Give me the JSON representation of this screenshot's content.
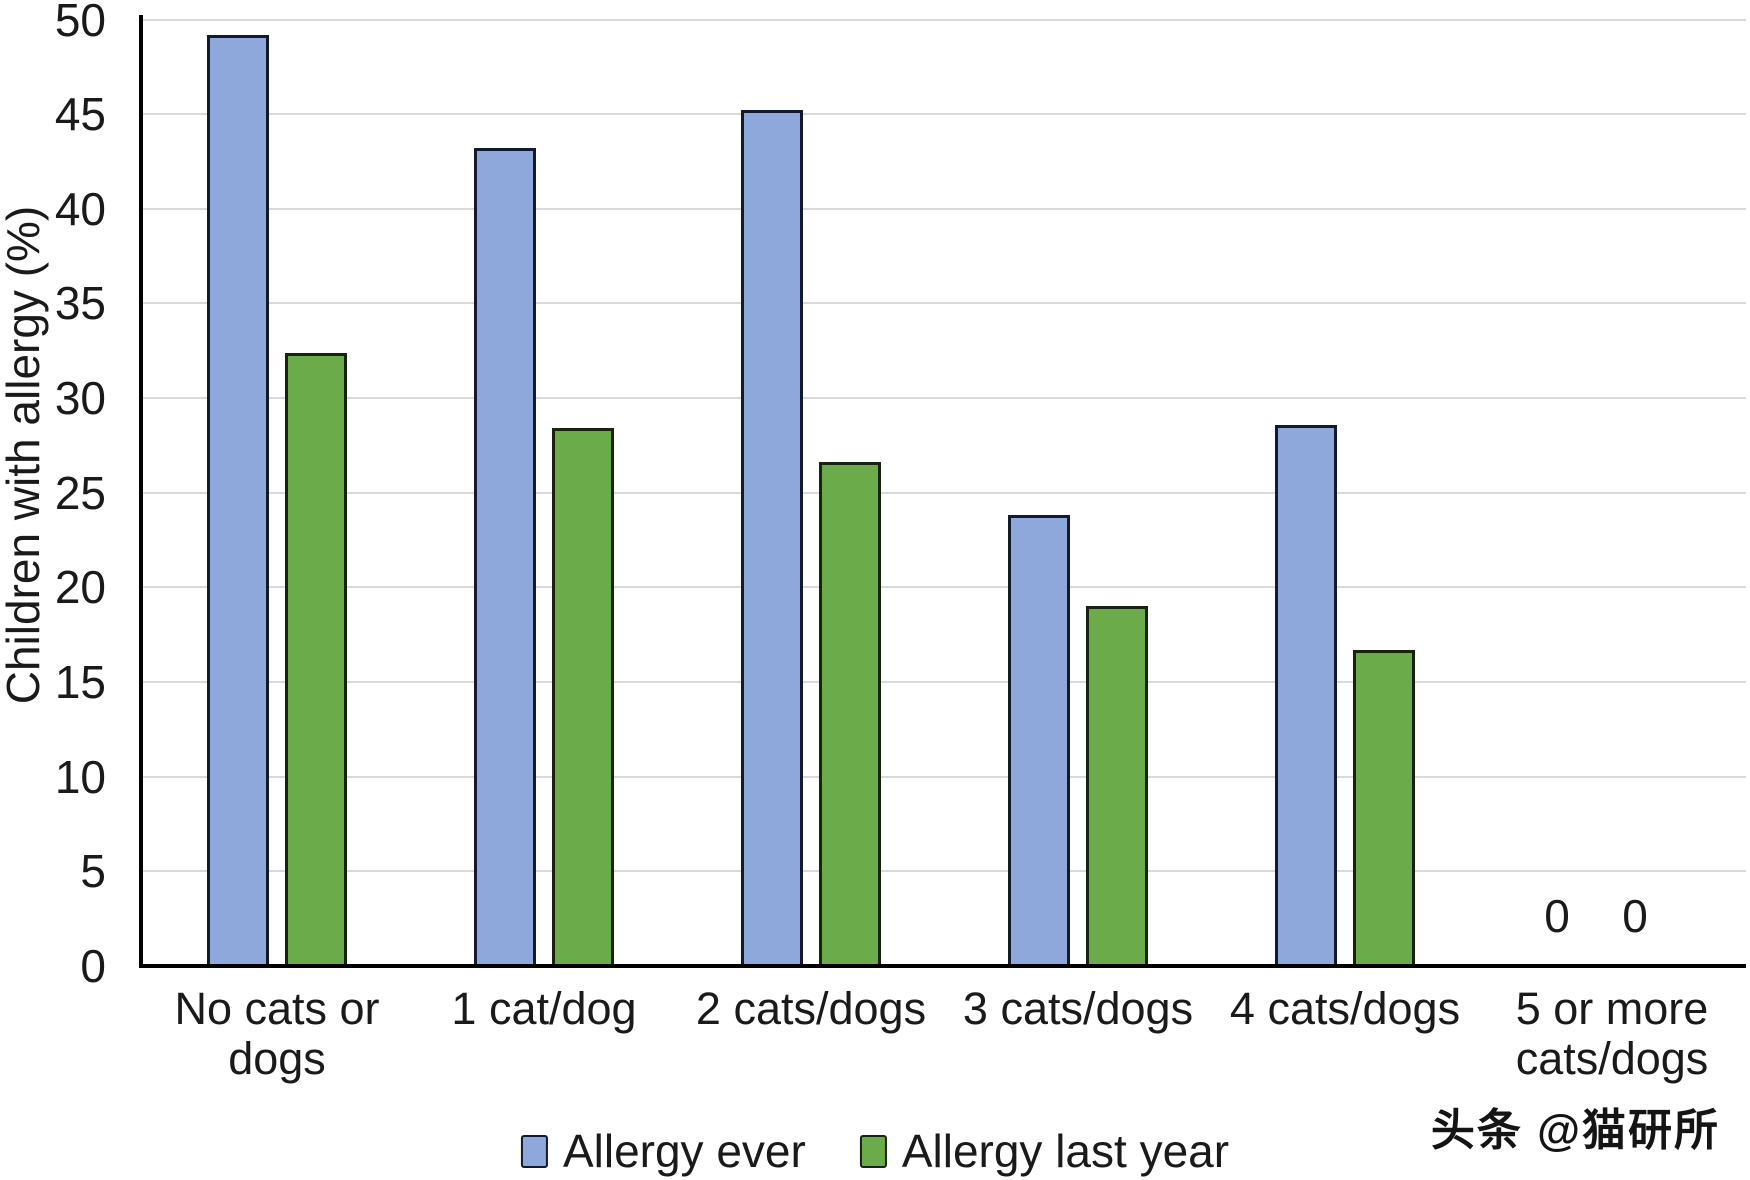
{
  "chart_data": {
    "type": "bar",
    "title": "",
    "xlabel": "",
    "ylabel": "Children with allergy (%)",
    "ylim": [
      0,
      50
    ],
    "ytick_step": 5,
    "yticks": [
      "0",
      "5",
      "10",
      "15",
      "20",
      "25",
      "30",
      "35",
      "40",
      "45",
      "50"
    ],
    "grid": true,
    "legend_position": "bottom-center",
    "categories": [
      "No cats or dogs",
      "1 cat/dog",
      "2 cats/dogs",
      "3 cats/dogs",
      "4 cats/dogs",
      "5 or more cats/dogs"
    ],
    "category_lines": [
      [
        "No cats or",
        "dogs"
      ],
      [
        "1 cat/dog"
      ],
      [
        "2 cats/dogs"
      ],
      [
        "3 cats/dogs"
      ],
      [
        "4 cats/dogs"
      ],
      [
        "5 or more",
        "cats/dogs"
      ]
    ],
    "series": [
      {
        "name": "Allergy ever",
        "color": "#8FA8DC",
        "border_color": "#131a2b",
        "values": [
          49.2,
          43.2,
          45.2,
          23.8,
          28.6,
          0
        ]
      },
      {
        "name": "Allergy last year",
        "color": "#6CAB4A",
        "border_color": "#17230e",
        "values": [
          32.4,
          28.4,
          26.6,
          19.0,
          16.7,
          0
        ]
      }
    ],
    "zero_value_label": "0",
    "colors": {
      "gridline": "#d9d9d9",
      "axis": "#000000",
      "text": "#1a1a1a"
    }
  },
  "watermark": "头条 @猫研所"
}
